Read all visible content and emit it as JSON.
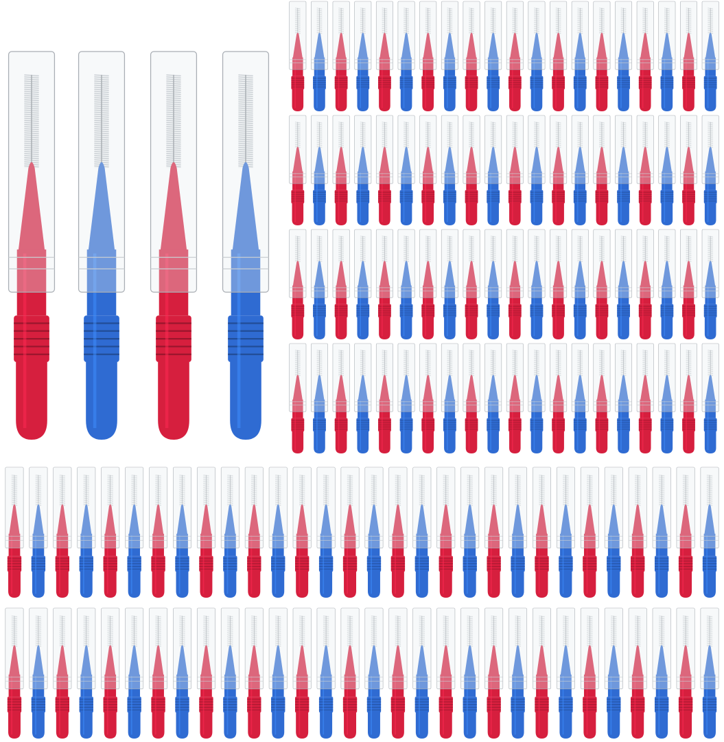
{
  "product": {
    "colors": {
      "red": "#d61f3e",
      "blue": "#2f6bd2",
      "cap": "#e9edf1",
      "bristle": "#b9bec4"
    },
    "color_order": [
      "red",
      "blue"
    ],
    "featured_count": 4,
    "top_grid": {
      "rows": 4,
      "cols": 20
    },
    "bottom_grid": {
      "rows": 2,
      "cols": 30
    }
  }
}
